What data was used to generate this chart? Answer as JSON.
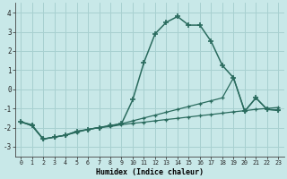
{
  "xlabel": "Humidex (Indice chaleur)",
  "x": [
    0,
    1,
    2,
    3,
    4,
    5,
    6,
    7,
    8,
    9,
    10,
    11,
    12,
    13,
    14,
    15,
    16,
    17,
    18,
    19,
    20,
    21,
    22,
    23
  ],
  "line_main": [
    -1.7,
    -1.9,
    -2.6,
    -2.5,
    -2.4,
    -2.2,
    -2.1,
    -2.0,
    -1.9,
    -1.8,
    -0.55,
    1.4,
    2.9,
    3.5,
    3.8,
    3.35,
    3.35,
    2.5,
    1.25,
    0.6,
    -1.15,
    -0.45,
    -1.05,
    -1.1
  ],
  "line_upper": [
    -1.7,
    -1.9,
    -2.6,
    -2.5,
    -2.4,
    -2.2,
    -2.1,
    -2.0,
    -1.9,
    -1.8,
    -1.65,
    -1.5,
    -1.35,
    -1.2,
    -1.05,
    -0.9,
    -0.75,
    -0.6,
    -0.45,
    0.6,
    -1.15,
    -0.45,
    -1.05,
    -1.1
  ],
  "line_lower": [
    -1.7,
    -1.85,
    -2.6,
    -2.5,
    -2.4,
    -2.25,
    -2.1,
    -2.0,
    -1.95,
    -1.85,
    -1.78,
    -1.72,
    -1.65,
    -1.58,
    -1.52,
    -1.45,
    -1.38,
    -1.32,
    -1.25,
    -1.18,
    -1.12,
    -1.05,
    -1.0,
    -0.95
  ],
  "bg_color": "#c8e8e8",
  "grid_color": "#a8d0d0",
  "line_color": "#2a6b5e",
  "ylim": [
    -3.5,
    4.5
  ],
  "xlim": [
    -0.5,
    23.5
  ],
  "yticks": [
    -3,
    -2,
    -1,
    0,
    1,
    2,
    3,
    4
  ]
}
